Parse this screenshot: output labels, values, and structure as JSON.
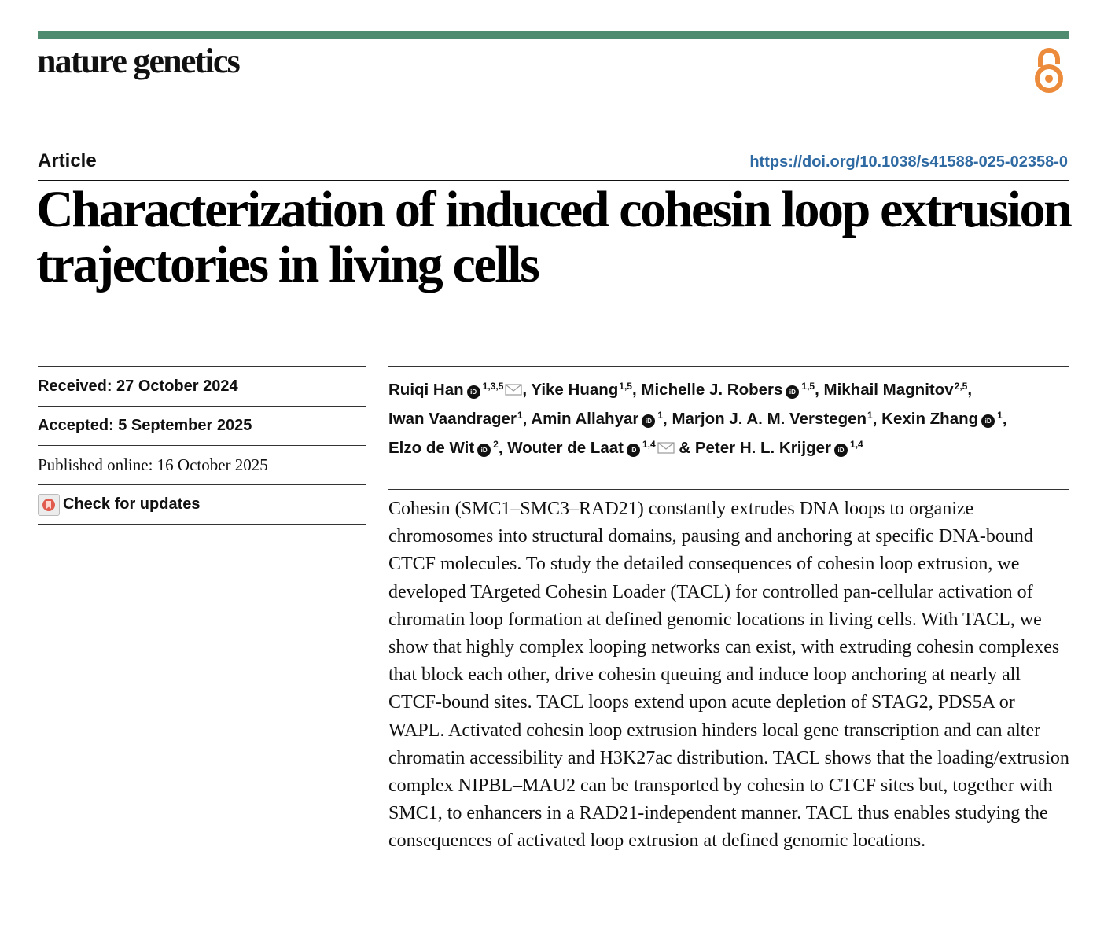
{
  "header": {
    "journal": "nature genetics",
    "open_access_icon": "open-access-icon",
    "brand_color": "#4f8c6f",
    "oa_color": "#ec8b3b"
  },
  "article": {
    "type": "Article",
    "doi": "https://doi.org/10.1038/s41588-025-02358-0",
    "doi_color": "#2f6aa3",
    "title": "Characterization of induced cohesin loop extrusion trajectories in living cells"
  },
  "meta": {
    "received": "Received: 27 October 2024",
    "accepted": "Accepted: 5 September 2025",
    "published": "Published online: 16 October 2025",
    "check_updates": "Check for updates"
  },
  "authors": [
    {
      "name": "Ruiqi Han",
      "orcid": true,
      "sup": "1,3,5",
      "email": true,
      "sep": ", "
    },
    {
      "name": "Yike Huang",
      "orcid": false,
      "sup": "1,5",
      "email": false,
      "sep": ", "
    },
    {
      "name": "Michelle J. Robers",
      "orcid": true,
      "sup": "1,5",
      "email": false,
      "sep": ", "
    },
    {
      "name": "Mikhail Magnitov",
      "orcid": false,
      "sup": "2,5",
      "email": false,
      "sep": ", "
    },
    {
      "name": "Iwan Vaandrager",
      "orcid": false,
      "sup": "1",
      "email": false,
      "sep": ", "
    },
    {
      "name": "Amin Allahyar",
      "orcid": true,
      "sup": "1",
      "email": false,
      "sep": ", "
    },
    {
      "name": "Marjon J. A. M. Verstegen",
      "orcid": false,
      "sup": "1",
      "email": false,
      "sep": ", "
    },
    {
      "name": "Kexin Zhang",
      "orcid": true,
      "sup": "1",
      "email": false,
      "sep": ", "
    },
    {
      "name": "Elzo de Wit",
      "orcid": true,
      "sup": "2",
      "email": false,
      "sep": ", "
    },
    {
      "name": "Wouter de Laat",
      "orcid": true,
      "sup": "1,4",
      "email": true,
      "sep": " & "
    },
    {
      "name": "Peter H. L. Krijger",
      "orcid": true,
      "sup": "1,4",
      "email": false,
      "sep": ""
    }
  ],
  "abstract": "Cohesin (SMC1–SMC3–RAD21) constantly extrudes DNA loops to organize chromosomes into structural domains, pausing and anchoring at specific DNA-bound CTCF molecules. To study the detailed consequences of cohesin loop extrusion, we developed TArgeted Cohesin Loader (TACL) for controlled pan-cellular activation of chromatin loop formation at defined genomic locations in living cells. With TACL, we show that highly complex looping networks can exist, with extruding cohesin complexes that block each other, drive cohesin queuing and induce loop anchoring at nearly all CTCF-bound sites. TACL loops extend upon acute depletion of STAG2, PDS5A or WAPL. Activated cohesin loop extrusion hinders local gene transcription and can alter chromatin accessibility and H3K27ac distribution. TACL shows that the loading/extrusion complex NIPBL–MAU2 can be transported by cohesin to CTCF sites but, together with SMC1, to enhancers in a RAD21-independent manner. TACL thus enables studying the consequences of activated loop extrusion at defined genomic locations."
}
